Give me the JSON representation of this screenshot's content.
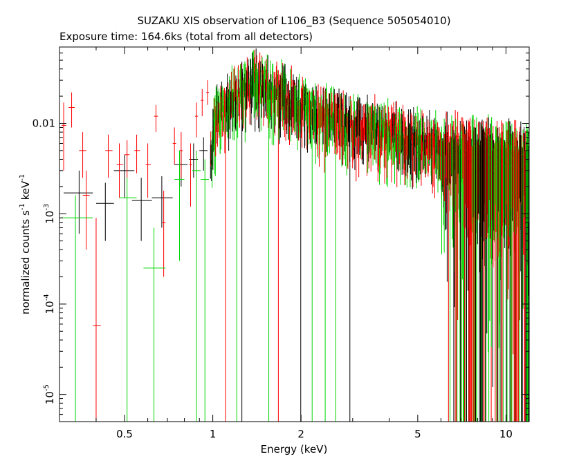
{
  "chart_data": {
    "type": "scatter",
    "title": "SUZAKU XIS observation of L106_B3 (Sequence 505054010)",
    "subtitle": "Exposure time: 164.6ks (total from all detectors)",
    "xlabel": "Energy (keV)",
    "ylabel_parts": [
      "normalized counts s",
      "-1",
      " keV",
      "-1"
    ],
    "xscale": "log",
    "yscale": "log",
    "xlim": [
      0.3,
      12
    ],
    "ylim": [
      5e-06,
      0.07
    ],
    "grid": false,
    "legend": "none",
    "x_ticks": [
      {
        "value": 0.5,
        "label": "0.5"
      },
      {
        "value": 1,
        "label": "1"
      },
      {
        "value": 2,
        "label": "2"
      },
      {
        "value": 5,
        "label": "5"
      },
      {
        "value": 10,
        "label": "10"
      }
    ],
    "y_ticks": [
      {
        "value": 1e-05,
        "base": "10",
        "exp": "-5",
        "label": ""
      },
      {
        "value": 0.0001,
        "base": "10",
        "exp": "-4",
        "label": ""
      },
      {
        "value": 0.001,
        "base": "10",
        "exp": "-3",
        "label": ""
      },
      {
        "value": 0.01,
        "base": "",
        "exp": "",
        "label": "0.01"
      }
    ],
    "series": [
      {
        "color": "#000000",
        "points": [
          {
            "x": 0.35,
            "y": 0.0017,
            "xlo": 0.31,
            "xhi": 0.39,
            "ylo": 0.0006,
            "yhi": 0.003
          },
          {
            "x": 0.43,
            "y": 0.0013,
            "xlo": 0.4,
            "xhi": 0.46,
            "ylo": 0.0005,
            "yhi": 0.0022
          },
          {
            "x": 0.5,
            "y": 0.003,
            "xlo": 0.46,
            "xhi": 0.54,
            "ylo": 0.0015,
            "yhi": 0.0045
          },
          {
            "x": 0.57,
            "y": 0.0014,
            "xlo": 0.53,
            "xhi": 0.62,
            "ylo": 0.0005,
            "yhi": 0.0025
          },
          {
            "x": 0.67,
            "y": 0.0015,
            "xlo": 0.62,
            "xhi": 0.73,
            "ylo": 0.0007,
            "yhi": 0.0026
          },
          {
            "x": 0.78,
            "y": 0.0035,
            "xlo": 0.74,
            "xhi": 0.82,
            "ylo": 0.002,
            "yhi": 0.005
          },
          {
            "x": 0.86,
            "y": 0.004,
            "xlo": 0.83,
            "xhi": 0.89,
            "ylo": 0.0025,
            "yhi": 0.006
          },
          {
            "x": 0.93,
            "y": 0.005,
            "xlo": 0.9,
            "xhi": 0.96,
            "ylo": 0.003,
            "yhi": 0.007
          }
        ]
      },
      {
        "color": "#ff0000",
        "points": [
          {
            "x": 0.31,
            "y": 0.0095,
            "xlo": 0.305,
            "xhi": 0.316,
            "ylo": 0.003,
            "yhi": 0.017
          },
          {
            "x": 0.33,
            "y": 0.015,
            "xlo": 0.322,
            "xhi": 0.338,
            "ylo": 0.009,
            "yhi": 0.022
          },
          {
            "x": 0.36,
            "y": 0.005,
            "xlo": 0.35,
            "xhi": 0.37,
            "ylo": 0.0025,
            "yhi": 0.008
          },
          {
            "x": 0.37,
            "y": 0.0016,
            "xlo": 0.36,
            "xhi": 0.38,
            "ylo": 0.0004,
            "yhi": 0.003
          },
          {
            "x": 0.4,
            "y": 5.8e-05,
            "xlo": 0.39,
            "xhi": 0.415,
            "ylo": 5e-06,
            "yhi": 0.0009
          },
          {
            "x": 0.44,
            "y": 0.005,
            "xlo": 0.43,
            "xhi": 0.455,
            "ylo": 0.0025,
            "yhi": 0.0075
          },
          {
            "x": 0.48,
            "y": 0.0035,
            "xlo": 0.47,
            "xhi": 0.495,
            "ylo": 0.0015,
            "yhi": 0.006
          },
          {
            "x": 0.51,
            "y": 0.0045,
            "xlo": 0.5,
            "xhi": 0.52,
            "ylo": 0.0025,
            "yhi": 0.0065
          },
          {
            "x": 0.55,
            "y": 0.005,
            "xlo": 0.54,
            "xhi": 0.565,
            "ylo": 0.0028,
            "yhi": 0.0075
          },
          {
            "x": 0.6,
            "y": 0.0035,
            "xlo": 0.59,
            "xhi": 0.615,
            "ylo": 0.0015,
            "yhi": 0.006
          },
          {
            "x": 0.64,
            "y": 0.012,
            "xlo": 0.63,
            "xhi": 0.65,
            "ylo": 0.008,
            "yhi": 0.016
          },
          {
            "x": 0.68,
            "y": 0.0008,
            "xlo": 0.67,
            "xhi": 0.69,
            "ylo": 0.0002,
            "yhi": 0.0018
          },
          {
            "x": 0.74,
            "y": 0.006,
            "xlo": 0.73,
            "xhi": 0.75,
            "ylo": 0.0035,
            "yhi": 0.009
          },
          {
            "x": 0.78,
            "y": 0.005,
            "xlo": 0.77,
            "xhi": 0.79,
            "ylo": 0.0025,
            "yhi": 0.008
          },
          {
            "x": 0.84,
            "y": 0.0035,
            "xlo": 0.83,
            "xhi": 0.85,
            "ylo": 0.0012,
            "yhi": 0.006
          },
          {
            "x": 0.88,
            "y": 0.012,
            "xlo": 0.87,
            "xhi": 0.89,
            "ylo": 0.007,
            "yhi": 0.017
          },
          {
            "x": 0.92,
            "y": 0.018,
            "xlo": 0.91,
            "xhi": 0.93,
            "ylo": 0.012,
            "yhi": 0.024
          },
          {
            "x": 0.96,
            "y": 0.022,
            "xlo": 0.95,
            "xhi": 0.97,
            "ylo": 0.016,
            "yhi": 0.03
          }
        ]
      },
      {
        "color": "#00d800",
        "points": [
          {
            "x": 0.34,
            "y": 0.0009,
            "xlo": 0.3,
            "xhi": 0.39,
            "ylo": 5e-06,
            "yhi": 0.0016
          },
          {
            "x": 0.51,
            "y": 0.0015,
            "xlo": 0.48,
            "xhi": 0.55,
            "ylo": 5e-06,
            "yhi": 0.0025
          },
          {
            "x": 0.63,
            "y": 0.00025,
            "xlo": 0.58,
            "xhi": 0.69,
            "ylo": 5e-06,
            "yhi": 0.0007
          },
          {
            "x": 0.77,
            "y": 0.0024,
            "xlo": 0.74,
            "xhi": 0.8,
            "ylo": 0.0003,
            "yhi": 0.005
          },
          {
            "x": 0.88,
            "y": 0.003,
            "xlo": 0.85,
            "xhi": 0.91,
            "ylo": 5e-06,
            "yhi": 0.005
          },
          {
            "x": 0.94,
            "y": 0.0024,
            "xlo": 0.91,
            "xhi": 0.97,
            "ylo": 5e-06,
            "yhi": 0.004
          }
        ]
      }
    ],
    "spectrum_profile": [
      {
        "x": 1.0,
        "y": 0.011
      },
      {
        "x": 1.2,
        "y": 0.022
      },
      {
        "x": 1.4,
        "y": 0.03
      },
      {
        "x": 1.7,
        "y": 0.022
      },
      {
        "x": 2.0,
        "y": 0.016
      },
      {
        "x": 3.0,
        "y": 0.01
      },
      {
        "x": 4.5,
        "y": 0.0075
      },
      {
        "x": 6.0,
        "y": 0.0058
      },
      {
        "x": 7.0,
        "y": 0.005
      },
      {
        "x": 8.5,
        "y": 0.0045
      },
      {
        "x": 10.0,
        "y": 0.0042
      },
      {
        "x": 12.0,
        "y": 0.004
      }
    ]
  },
  "colors": {
    "black": "#000000",
    "red": "#ff0000",
    "green": "#00d800"
  }
}
